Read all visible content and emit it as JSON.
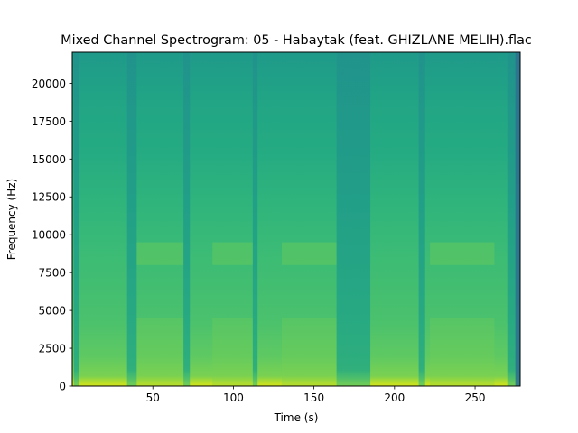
{
  "chart_data": {
    "type": "heatmap",
    "title": "Mixed Channel Spectrogram: 05 - Habaytak (feat. GHIZLANE MELIH).flac",
    "xlabel": "Time (s)",
    "ylabel": "Frequency (Hz)",
    "xlim": [
      0,
      278
    ],
    "ylim": [
      0,
      22050
    ],
    "xticks": [
      50,
      100,
      150,
      200,
      250
    ],
    "xtick_labels": [
      "50",
      "100",
      "150",
      "200",
      "250"
    ],
    "yticks": [
      0,
      2500,
      5000,
      7500,
      10000,
      12500,
      15000,
      17500,
      20000
    ],
    "ytick_labels": [
      "0",
      "2500",
      "5000",
      "7500",
      "10000",
      "12500",
      "15000",
      "17500",
      "20000"
    ],
    "colormap": "viridis",
    "track_end_s": 275,
    "quiet_segments_s": [
      [
        1,
        4
      ],
      [
        34,
        40
      ],
      [
        69,
        73
      ],
      [
        112,
        115
      ],
      [
        164,
        185
      ],
      [
        215,
        219
      ],
      [
        270,
        278
      ]
    ],
    "bright_segments_s": [
      [
        40,
        69
      ],
      [
        87,
        112
      ],
      [
        130,
        164
      ],
      [
        222,
        262
      ]
    ],
    "colors": {
      "background": "#ffffff",
      "axis": "#000000"
    }
  }
}
